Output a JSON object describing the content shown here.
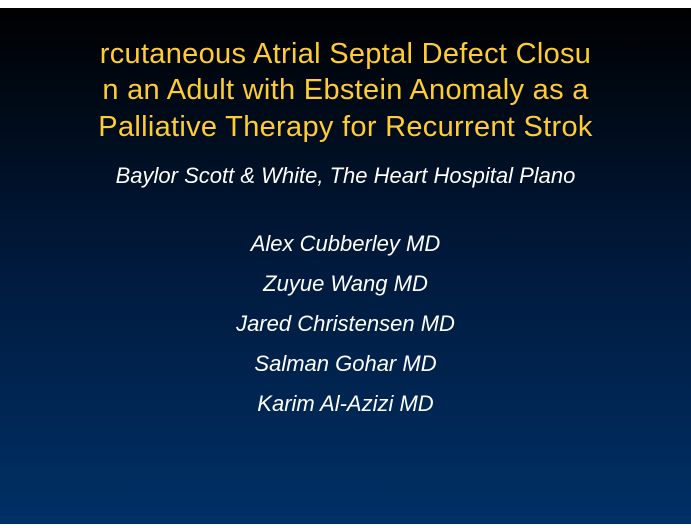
{
  "slide": {
    "title_line1": "rcutaneous Atrial Septal Defect Closu",
    "title_line2": "n an Adult with Ebstein Anomaly as a",
    "title_line3": "Palliative Therapy for Recurrent Strok",
    "institution": "Baylor Scott & White, The Heart Hospital Plano",
    "authors": [
      "Alex Cubberley MD",
      "Zuyue Wang MD",
      "Jared Christensen MD",
      "Salman Gohar MD",
      "Karim Al-Azizi MD"
    ],
    "colors": {
      "title_color": "#ffcc33",
      "text_color": "#ffffff",
      "bg_gradient_start": "#000000",
      "bg_gradient_mid": "#001a3d",
      "bg_gradient_end": "#003066"
    },
    "typography": {
      "title_fontsize": 29,
      "body_fontsize": 22,
      "title_fontweight": "normal",
      "body_fontstyle": "italic"
    }
  }
}
